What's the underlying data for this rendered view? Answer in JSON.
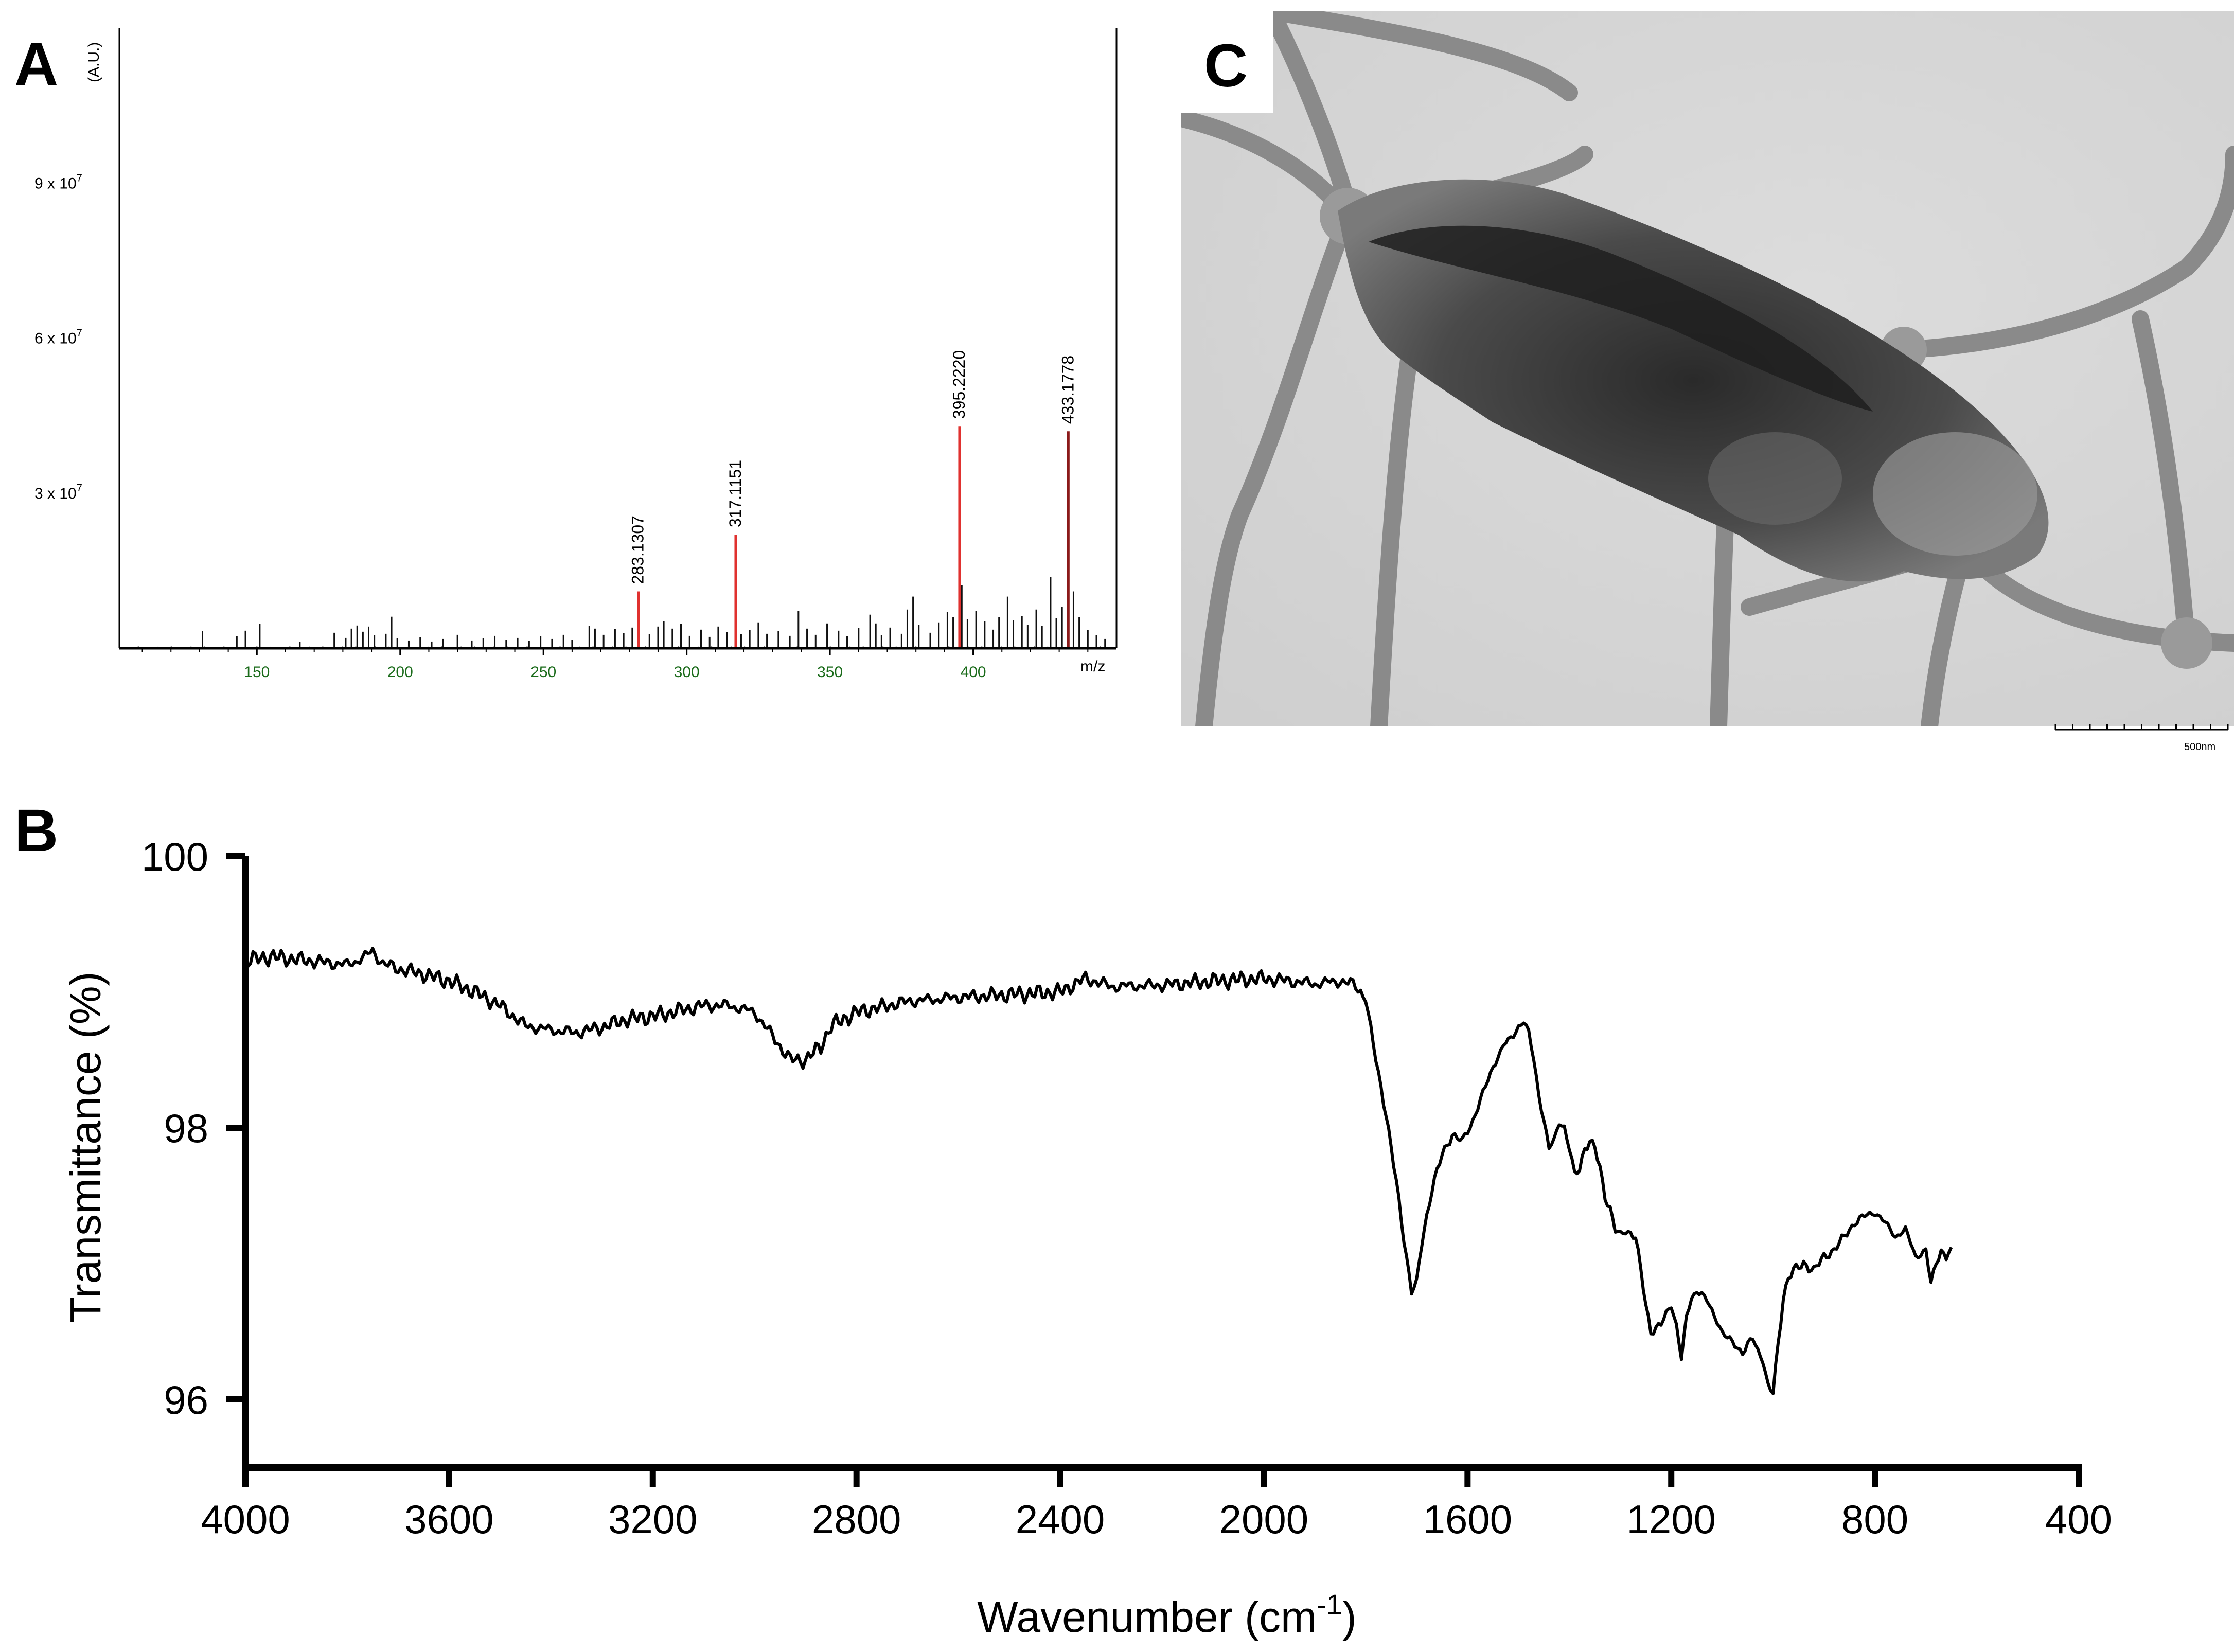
{
  "panels": {
    "a_label": "A",
    "b_label": "B",
    "c_label": "C"
  },
  "chart_data": [
    {
      "panel": "A",
      "type": "bar",
      "ylabel": "(A.U.)",
      "xlabel": "m/z",
      "xlim": [
        102,
        450
      ],
      "ylim": [
        0,
        120000000
      ],
      "x_ticks": [
        "150",
        "200",
        "250",
        "300",
        "350",
        "400"
      ],
      "y_tick_labels": [
        "3 x 10",
        "6 x 10",
        "9 x 10"
      ],
      "y_tick_exponent": "7",
      "y_tick_values": [
        30000000,
        60000000,
        90000000
      ],
      "highlighted_peaks": [
        {
          "mz": 283.1307,
          "label": "283.1307",
          "value": 11000000,
          "color": "#e0312f"
        },
        {
          "mz": 317.1151,
          "label": "317.1151",
          "value": 22000000,
          "color": "#e0312f"
        },
        {
          "mz": 395.222,
          "label": "395.2220",
          "value": 43000000,
          "color": "#e0312f"
        },
        {
          "mz": 433.1778,
          "label": "433.1778",
          "value": 42000000,
          "color": "#8b1a1a"
        }
      ],
      "minor_peaks": [
        {
          "mz": 131,
          "value": 3300000
        },
        {
          "mz": 143,
          "value": 2300000
        },
        {
          "mz": 146,
          "value": 3400000
        },
        {
          "mz": 151,
          "value": 4700000
        },
        {
          "mz": 165,
          "value": 1200000
        },
        {
          "mz": 177,
          "value": 3000000
        },
        {
          "mz": 181,
          "value": 2000000
        },
        {
          "mz": 183,
          "value": 3800000
        },
        {
          "mz": 185,
          "value": 4400000
        },
        {
          "mz": 187,
          "value": 3200000
        },
        {
          "mz": 189,
          "value": 4200000
        },
        {
          "mz": 191,
          "value": 2500000
        },
        {
          "mz": 195,
          "value": 2800000
        },
        {
          "mz": 197,
          "value": 6100000
        },
        {
          "mz": 199,
          "value": 1900000
        },
        {
          "mz": 203,
          "value": 1500000
        },
        {
          "mz": 207,
          "value": 2100000
        },
        {
          "mz": 211,
          "value": 1300000
        },
        {
          "mz": 215,
          "value": 1800000
        },
        {
          "mz": 220,
          "value": 2600000
        },
        {
          "mz": 225,
          "value": 1500000
        },
        {
          "mz": 229,
          "value": 1900000
        },
        {
          "mz": 233,
          "value": 2400000
        },
        {
          "mz": 237,
          "value": 1600000
        },
        {
          "mz": 241,
          "value": 2000000
        },
        {
          "mz": 245,
          "value": 1400000
        },
        {
          "mz": 249,
          "value": 2300000
        },
        {
          "mz": 253,
          "value": 1800000
        },
        {
          "mz": 257,
          "value": 2600000
        },
        {
          "mz": 260,
          "value": 1600000
        },
        {
          "mz": 266,
          "value": 4300000
        },
        {
          "mz": 268,
          "value": 3800000
        },
        {
          "mz": 271,
          "value": 2600000
        },
        {
          "mz": 275,
          "value": 3700000
        },
        {
          "mz": 278,
          "value": 2900000
        },
        {
          "mz": 281,
          "value": 4000000
        },
        {
          "mz": 287,
          "value": 2700000
        },
        {
          "mz": 290,
          "value": 4200000
        },
        {
          "mz": 292,
          "value": 5200000
        },
        {
          "mz": 295,
          "value": 3800000
        },
        {
          "mz": 298,
          "value": 4700000
        },
        {
          "mz": 301,
          "value": 2400000
        },
        {
          "mz": 305,
          "value": 3600000
        },
        {
          "mz": 308,
          "value": 2200000
        },
        {
          "mz": 311,
          "value": 4200000
        },
        {
          "mz": 314,
          "value": 3100000
        },
        {
          "mz": 319,
          "value": 2700000
        },
        {
          "mz": 322,
          "value": 3500000
        },
        {
          "mz": 325,
          "value": 5000000
        },
        {
          "mz": 328,
          "value": 2800000
        },
        {
          "mz": 332,
          "value": 3300000
        },
        {
          "mz": 336,
          "value": 2400000
        },
        {
          "mz": 339,
          "value": 7200000
        },
        {
          "mz": 342,
          "value": 3800000
        },
        {
          "mz": 345,
          "value": 2600000
        },
        {
          "mz": 349,
          "value": 4800000
        },
        {
          "mz": 353,
          "value": 3400000
        },
        {
          "mz": 356,
          "value": 2300000
        },
        {
          "mz": 360,
          "value": 3900000
        },
        {
          "mz": 364,
          "value": 6500000
        },
        {
          "mz": 366,
          "value": 4800000
        },
        {
          "mz": 368,
          "value": 2500000
        },
        {
          "mz": 371,
          "value": 4000000
        },
        {
          "mz": 375,
          "value": 2800000
        },
        {
          "mz": 377,
          "value": 7500000
        },
        {
          "mz": 379,
          "value": 10000000
        },
        {
          "mz": 381,
          "value": 4500000
        },
        {
          "mz": 385,
          "value": 3000000
        },
        {
          "mz": 388,
          "value": 5000000
        },
        {
          "mz": 391,
          "value": 7000000
        },
        {
          "mz": 393,
          "value": 6000000
        },
        {
          "mz": 396,
          "value": 12200000
        },
        {
          "mz": 398,
          "value": 5600000
        },
        {
          "mz": 401,
          "value": 7200000
        },
        {
          "mz": 404,
          "value": 5200000
        },
        {
          "mz": 407,
          "value": 3600000
        },
        {
          "mz": 409,
          "value": 6000000
        },
        {
          "mz": 412,
          "value": 10000000
        },
        {
          "mz": 414,
          "value": 5400000
        },
        {
          "mz": 417,
          "value": 6200000
        },
        {
          "mz": 419,
          "value": 4500000
        },
        {
          "mz": 422,
          "value": 7500000
        },
        {
          "mz": 424,
          "value": 4300000
        },
        {
          "mz": 427,
          "value": 13800000
        },
        {
          "mz": 429,
          "value": 5800000
        },
        {
          "mz": 431,
          "value": 8000000
        },
        {
          "mz": 435,
          "value": 11000000
        },
        {
          "mz": 437,
          "value": 6000000
        },
        {
          "mz": 440,
          "value": 3500000
        },
        {
          "mz": 443,
          "value": 2500000
        },
        {
          "mz": 446,
          "value": 1800000
        }
      ]
    },
    {
      "panel": "B",
      "type": "line",
      "xlabel": "Wavenumber (cm",
      "xlabel_superscript": "-1",
      "xlabel_suffix": ")",
      "ylabel": "Transmittance (%)",
      "xlim": [
        4000,
        400
      ],
      "ylim": [
        95.5,
        100
      ],
      "x_ticks": [
        4000,
        3600,
        3200,
        2800,
        2400,
        2000,
        1600,
        1200,
        800,
        400
      ],
      "y_ticks": [
        96,
        98,
        100
      ],
      "series": [
        {
          "x": [
            4000,
            3950,
            3900,
            3850,
            3800,
            3770,
            3750,
            3730,
            3700,
            3650,
            3600,
            3550,
            3500,
            3450,
            3400,
            3350,
            3300,
            3250,
            3200,
            3150,
            3100,
            3050,
            3000,
            2970,
            2950,
            2930,
            2900,
            2870,
            2850,
            2800,
            2700,
            2600,
            2500,
            2400,
            2350,
            2300,
            2200,
            2100,
            2000,
            1950,
            1900,
            1850,
            1820,
            1800,
            1780,
            1760,
            1740,
            1720,
            1710,
            1700,
            1690,
            1670,
            1650,
            1630,
            1610,
            1590,
            1570,
            1550,
            1530,
            1510,
            1500,
            1490,
            1480,
            1470,
            1460,
            1450,
            1440,
            1430,
            1420,
            1410,
            1400,
            1390,
            1380,
            1370,
            1360,
            1350,
            1340,
            1330,
            1320,
            1310,
            1300,
            1290,
            1280,
            1270,
            1260,
            1250,
            1240,
            1220,
            1200,
            1190,
            1180,
            1170,
            1160,
            1150,
            1140,
            1130,
            1120,
            1110,
            1100,
            1090,
            1080,
            1070,
            1060,
            1050,
            1040,
            1030,
            1020,
            1010,
            1000,
            990,
            980,
            970,
            960,
            950,
            940,
            920,
            900,
            880,
            860,
            840,
            820,
            800,
            780,
            760,
            740,
            720,
            700,
            690,
            680,
            670,
            660,
            650
          ],
          "y": [
            99.23,
            99.26,
            99.24,
            99.22,
            99.2,
            99.25,
            99.3,
            99.21,
            99.17,
            99.13,
            99.08,
            99.0,
            98.9,
            98.75,
            98.72,
            98.7,
            98.74,
            98.8,
            98.82,
            98.86,
            98.9,
            98.9,
            98.85,
            98.7,
            98.6,
            98.5,
            98.5,
            98.6,
            98.75,
            98.85,
            98.93,
            98.96,
            98.98,
            99.0,
            99.1,
            99.04,
            99.05,
            99.08,
            99.1,
            99.08,
            99.06,
            99.08,
            99.05,
            98.95,
            98.5,
            98.1,
            97.6,
            97.05,
            96.8,
            96.85,
            97.15,
            97.55,
            97.8,
            97.95,
            97.9,
            98.05,
            98.25,
            98.45,
            98.6,
            98.68,
            98.75,
            98.78,
            98.7,
            98.5,
            98.25,
            98.05,
            97.85,
            97.9,
            98.05,
            98.0,
            97.85,
            97.65,
            97.7,
            97.85,
            97.9,
            97.85,
            97.7,
            97.5,
            97.4,
            97.25,
            97.2,
            97.25,
            97.22,
            97.2,
            96.95,
            96.7,
            96.5,
            96.55,
            96.7,
            96.55,
            96.3,
            96.6,
            96.75,
            96.8,
            96.78,
            96.72,
            96.65,
            96.58,
            96.5,
            96.45,
            96.42,
            96.38,
            96.35,
            96.4,
            96.45,
            96.35,
            96.3,
            96.1,
            96.05,
            96.4,
            96.75,
            96.9,
            96.95,
            96.97,
            97.0,
            96.95,
            97.05,
            97.1,
            97.2,
            97.3,
            97.35,
            97.38,
            97.3,
            97.2,
            97.25,
            97.05,
            97.1,
            96.85,
            97.0,
            97.1,
            97.05,
            97.12
          ]
        }
      ]
    }
  ],
  "micrograph": {
    "scale_label": "500nm"
  }
}
